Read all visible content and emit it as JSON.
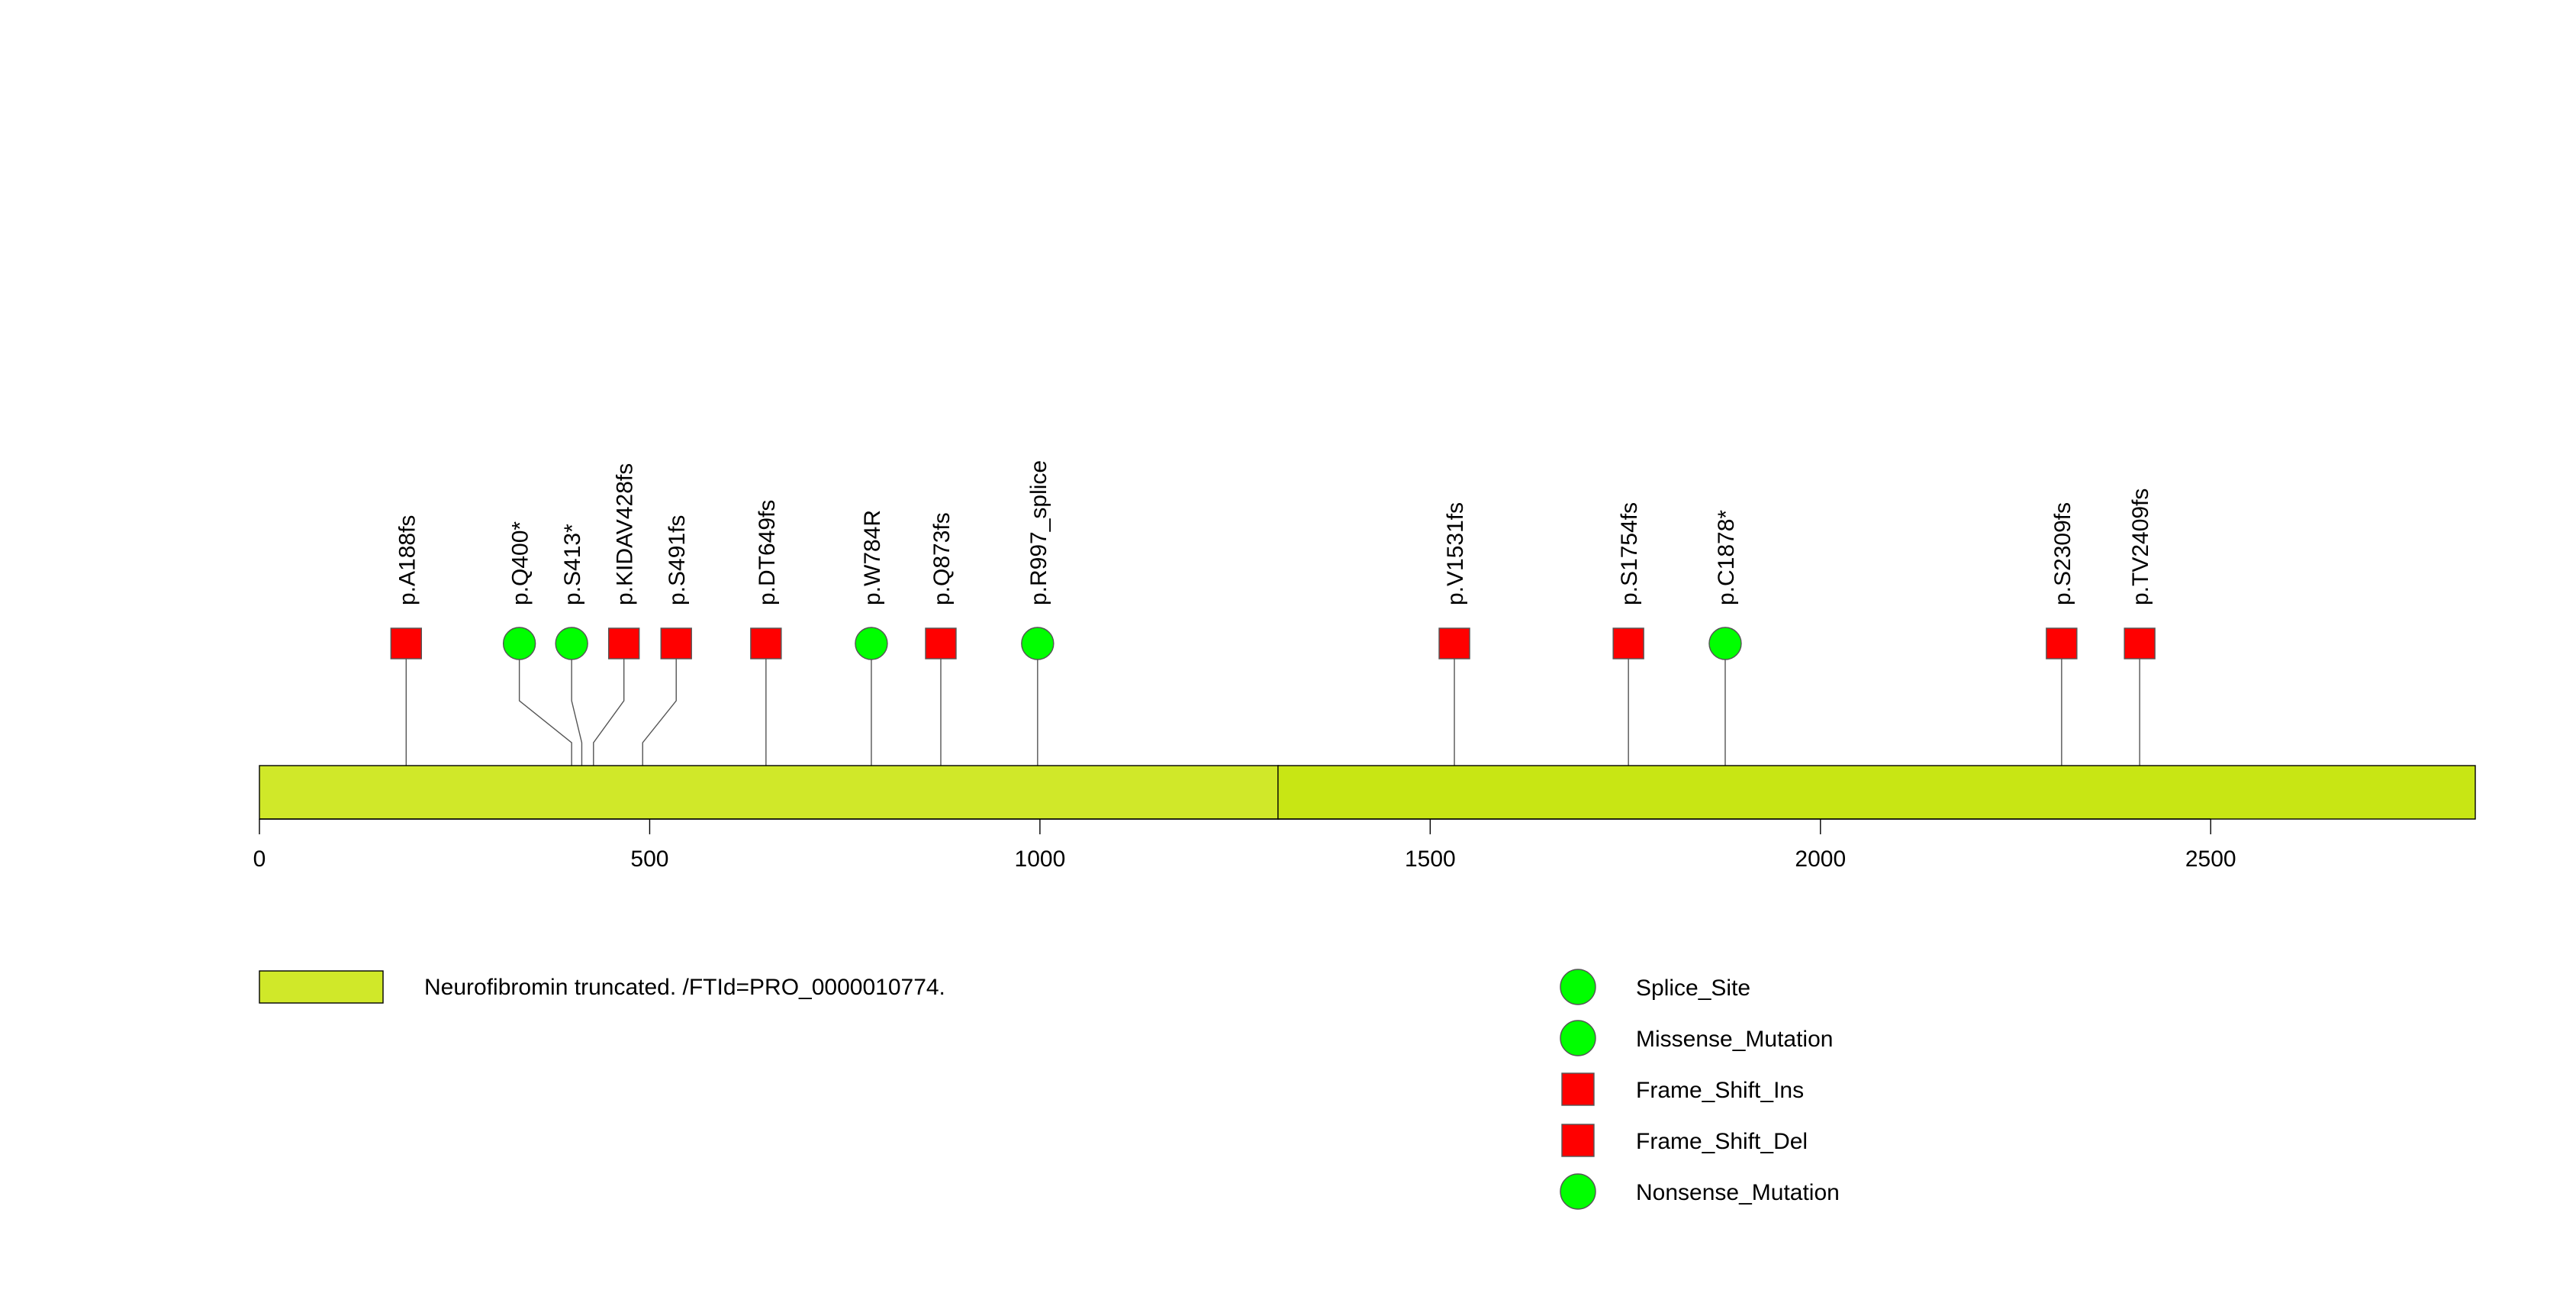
{
  "protein_length": 2839,
  "scale_max": 2839,
  "domains": [
    {
      "label": "",
      "start": 1,
      "end": 1306,
      "color": "#d0e829"
    },
    {
      "label": "",
      "start": 1306,
      "end": 2839,
      "color": "#c8e614"
    }
  ],
  "axis": {
    "ticks": [
      0,
      500,
      1000,
      1500,
      2000,
      2500
    ]
  },
  "mutations": [
    {
      "label": "p.A188fs",
      "position": 188,
      "label_pos": 188,
      "shape": "square"
    },
    {
      "label": "p.Q400*",
      "position": 400,
      "label_pos": 333,
      "shape": "circle"
    },
    {
      "label": "p.S413*",
      "position": 413,
      "label_pos": 400,
      "shape": "circle"
    },
    {
      "label": "p.KIDAV428fs",
      "position": 428,
      "label_pos": 467,
      "shape": "square"
    },
    {
      "label": "p.S491fs",
      "position": 491,
      "label_pos": 534,
      "shape": "square"
    },
    {
      "label": "p.DT649fs",
      "position": 649,
      "label_pos": 649,
      "shape": "square"
    },
    {
      "label": "p.W784R",
      "position": 784,
      "label_pos": 784,
      "shape": "circle"
    },
    {
      "label": "p.Q873fs",
      "position": 873,
      "label_pos": 873,
      "shape": "square"
    },
    {
      "label": "p.R997_splice",
      "position": 997,
      "label_pos": 997,
      "shape": "circle"
    },
    {
      "label": "p.V1531fs",
      "position": 1531,
      "label_pos": 1531,
      "shape": "square"
    },
    {
      "label": "p.S1754fs",
      "position": 1754,
      "label_pos": 1754,
      "shape": "square"
    },
    {
      "label": "p.C1878*",
      "position": 1878,
      "label_pos": 1878,
      "shape": "circle"
    },
    {
      "label": "p.S2309fs",
      "position": 2309,
      "label_pos": 2309,
      "shape": "square"
    },
    {
      "label": "p.TV2409fs",
      "position": 2409,
      "label_pos": 2409,
      "shape": "square"
    }
  ],
  "legend_domains": [
    {
      "label": "Neurofibromin truncated. /FTId=PRO_0000010774.",
      "color": "#d0e829"
    }
  ],
  "legend_mutations": [
    {
      "label": "Splice_Site",
      "shape": "circle",
      "color": "#00ff00"
    },
    {
      "label": "Missense_Mutation",
      "shape": "circle",
      "color": "#00ff00"
    },
    {
      "label": "Frame_Shift_Ins",
      "shape": "square",
      "color": "#ff0000"
    },
    {
      "label": "Frame_Shift_Del",
      "shape": "square",
      "color": "#ff0000"
    },
    {
      "label": "Nonsense_Mutation",
      "shape": "circle",
      "color": "#00ff00"
    }
  ],
  "colors": {
    "square": "#ff0000",
    "circle": "#00ff00",
    "stroke": "#555555"
  }
}
